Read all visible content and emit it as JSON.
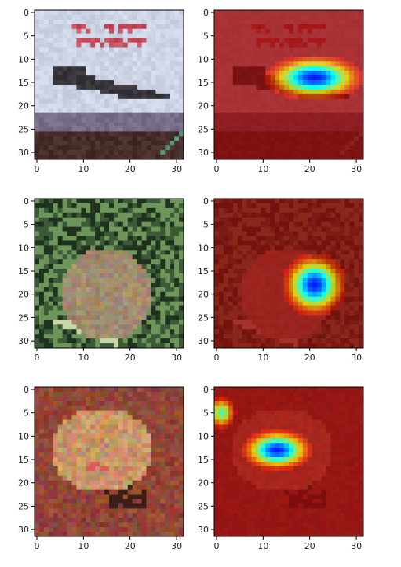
{
  "chart_data": [
    {
      "type": "image",
      "subject": "ship-like object on a light background",
      "axis": {
        "xlim": [
          0,
          31
        ],
        "ylim": [
          0,
          31
        ],
        "xticks": [
          0,
          10,
          20,
          30
        ],
        "yticks": [
          0,
          5,
          10,
          15,
          20,
          25,
          30
        ]
      },
      "overlay": false
    },
    {
      "type": "heatmap",
      "subject": "same image with heat overlay",
      "axis": {
        "xlim": [
          0,
          31
        ],
        "ylim": [
          0,
          31
        ],
        "xticks": [
          0,
          10,
          20,
          30
        ],
        "yticks": [
          0,
          5,
          10,
          15,
          20,
          25,
          30
        ]
      },
      "hotspots": [
        {
          "x": 21,
          "y": 14,
          "sx": 5.5,
          "sy": 2.5,
          "w": 1.0
        }
      ],
      "overlay": true
    },
    {
      "type": "image",
      "subject": "frog on grass",
      "axis": {
        "xlim": [
          0,
          31
        ],
        "ylim": [
          0,
          31
        ],
        "xticks": [
          0,
          10,
          20,
          30
        ],
        "yticks": [
          0,
          5,
          10,
          15,
          20,
          25,
          30
        ]
      },
      "overlay": false
    },
    {
      "type": "heatmap",
      "subject": "frog image with heat overlay",
      "axis": {
        "xlim": [
          0,
          31
        ],
        "ylim": [
          0,
          31
        ],
        "xticks": [
          0,
          10,
          20,
          30
        ],
        "yticks": [
          0,
          5,
          10,
          15,
          20,
          25,
          30
        ]
      },
      "hotspots": [
        {
          "x": 21,
          "y": 18,
          "sx": 3.5,
          "sy": 3.5,
          "w": 1.0
        }
      ],
      "overlay": true
    },
    {
      "type": "image",
      "subject": "frog on reddish ground",
      "axis": {
        "xlim": [
          0,
          31
        ],
        "ylim": [
          0,
          31
        ],
        "xticks": [
          0,
          10,
          20,
          30
        ],
        "yticks": [
          0,
          5,
          10,
          15,
          20,
          25,
          30
        ]
      },
      "overlay": false
    },
    {
      "type": "heatmap",
      "subject": "frog on reddish ground with heat overlay",
      "axis": {
        "xlim": [
          0,
          31
        ],
        "ylim": [
          0,
          31
        ],
        "xticks": [
          0,
          10,
          20,
          30
        ],
        "yticks": [
          0,
          5,
          10,
          15,
          20,
          25,
          30
        ]
      },
      "hotspots": [
        {
          "x": 13,
          "y": 13,
          "sx": 4.0,
          "sy": 2.3,
          "w": 1.0
        },
        {
          "x": 1,
          "y": 5,
          "sx": 1.8,
          "sy": 2.0,
          "w": 0.65
        }
      ],
      "overlay": true
    }
  ]
}
